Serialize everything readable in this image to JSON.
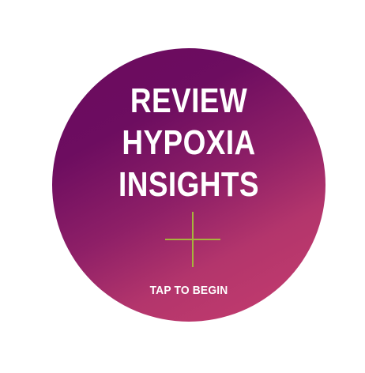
{
  "title": {
    "line1": "REVIEW",
    "line2": "HYPOXIA",
    "line3": "INSIGHTS"
  },
  "cta_label": "TAP TO BEGIN",
  "icon": "plus-icon",
  "colors": {
    "background": "#ffffff",
    "gradient_start": "#6a0a5e",
    "gradient_end": "#c63d6e",
    "text": "#ffffff",
    "plus": "#a7b43c"
  }
}
